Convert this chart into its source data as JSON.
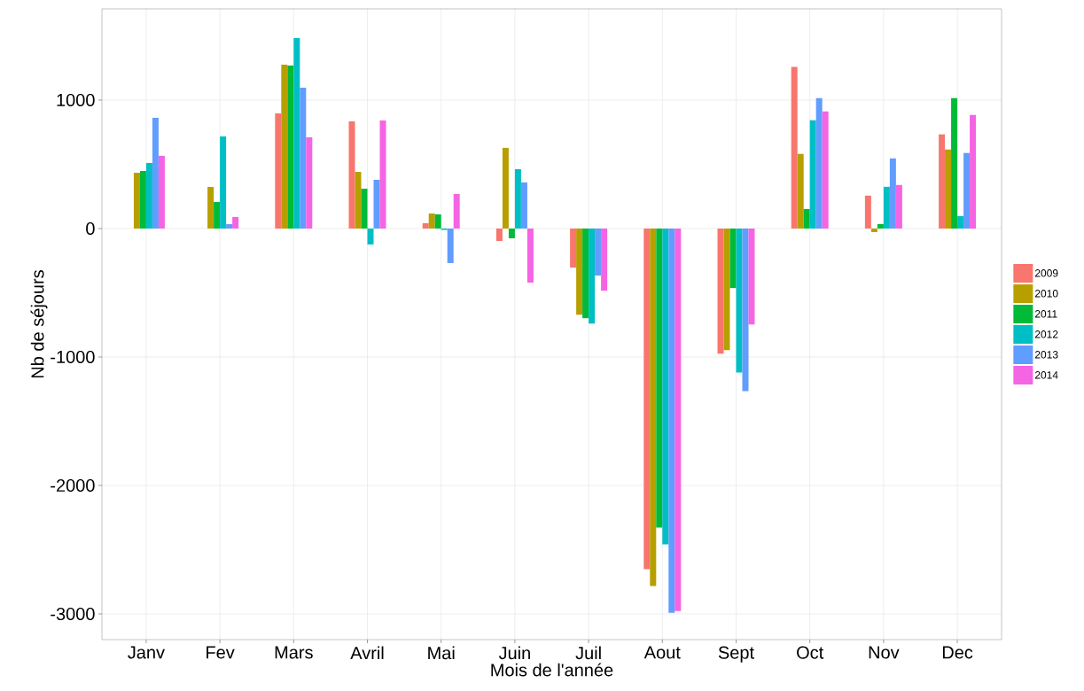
{
  "chart_data": {
    "type": "bar",
    "xlabel": "Mois de l'année",
    "ylabel": "Nb de séjours",
    "categories": [
      "Janv",
      "Fev",
      "Mars",
      "Avril",
      "Mai",
      "Juin",
      "Juil",
      "Aout",
      "Sept",
      "Oct",
      "Nov",
      "Dec"
    ],
    "series": [
      {
        "name": "2009",
        "color": "#f8766d",
        "values": [
          null,
          null,
          897,
          834,
          41,
          -97,
          -304,
          -2652,
          -975,
          1258,
          256,
          733
        ]
      },
      {
        "name": "2010",
        "color": "#b79f00",
        "values": [
          434,
          324,
          1276,
          441,
          117,
          628,
          -671,
          -2783,
          -947,
          581,
          -28,
          615
        ]
      },
      {
        "name": "2011",
        "color": "#00ba38",
        "values": [
          448,
          207,
          1269,
          310,
          110,
          -76,
          -698,
          -2327,
          -463,
          152,
          35,
          1016
        ]
      },
      {
        "name": "2012",
        "color": "#00bfc4",
        "values": [
          510,
          717,
          1483,
          -124,
          -11,
          462,
          -740,
          -2459,
          -1120,
          843,
          325,
          97
        ]
      },
      {
        "name": "2013",
        "color": "#619cff",
        "values": [
          862,
          34,
          1097,
          379,
          -269,
          359,
          -366,
          -2991,
          -1265,
          1016,
          546,
          588
        ]
      },
      {
        "name": "2014",
        "color": "#f564e3",
        "values": [
          566,
          90,
          710,
          841,
          269,
          -421,
          -484,
          -2977,
          -747,
          912,
          339,
          885
        ]
      }
    ],
    "ylim": [
      -3200,
      1710
    ],
    "yticks": [
      -3000,
      -2000,
      -1000,
      0,
      1000
    ],
    "grid": true,
    "legend": "right"
  }
}
